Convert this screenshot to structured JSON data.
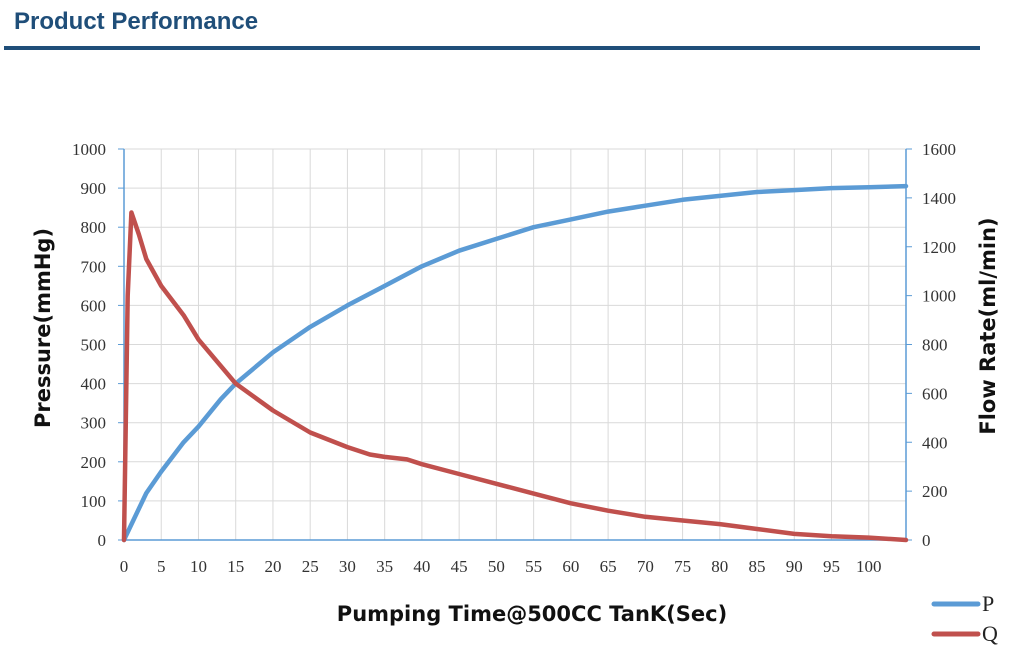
{
  "header": {
    "title": "Product Performance"
  },
  "colors": {
    "header": "#1f4e79",
    "P": "#5b9bd5",
    "Q": "#c0504d",
    "grid": "#d9d9d9",
    "axis": "#5b9bd5"
  },
  "chart_data": {
    "type": "line",
    "title": "",
    "xlabel": "Pumping  Time@500CC TanK(Sec)",
    "ylabel_left": "Pressure(mmHg)",
    "ylabel_right": "Flow Rate(ml/min)",
    "xlim": [
      0,
      105
    ],
    "ylim_left": [
      0,
      1000
    ],
    "ylim_right": [
      0,
      1600
    ],
    "grid": true,
    "legend": "bottom-right",
    "x_ticks": [
      "0",
      "5",
      "10",
      "15",
      "20",
      "25",
      "30",
      "35",
      "40",
      "45",
      "50",
      "55",
      "60",
      "65",
      "70",
      "75",
      "80",
      "85",
      "90",
      "95",
      "100"
    ],
    "y_left_ticks": [
      "0",
      "100",
      "200",
      "300",
      "400",
      "500",
      "600",
      "700",
      "800",
      "900",
      "1000"
    ],
    "y_right_ticks": [
      "0",
      "200",
      "400",
      "600",
      "800",
      "1000",
      "1200",
      "1400",
      "1600"
    ],
    "series": [
      {
        "name": "P",
        "axis": "left",
        "x": [
          0,
          1,
          3,
          5,
          8,
          10,
          13,
          15,
          20,
          25,
          30,
          35,
          40,
          45,
          50,
          55,
          60,
          65,
          70,
          75,
          80,
          85,
          90,
          95,
          100,
          105
        ],
        "y": [
          0,
          40,
          120,
          175,
          250,
          290,
          360,
          400,
          480,
          545,
          600,
          650,
          700,
          740,
          770,
          800,
          820,
          840,
          855,
          870,
          880,
          890,
          895,
          900,
          902,
          905
        ]
      },
      {
        "name": "Q",
        "axis": "right",
        "x": [
          0,
          0.5,
          1,
          2,
          3,
          5,
          8,
          10,
          15,
          20,
          25,
          30,
          33,
          35,
          38,
          40,
          45,
          50,
          55,
          60,
          65,
          70,
          75,
          80,
          85,
          90,
          95,
          100,
          105
        ],
        "y": [
          0,
          1000,
          1340,
          1250,
          1150,
          1040,
          920,
          820,
          640,
          530,
          440,
          380,
          350,
          340,
          330,
          310,
          270,
          230,
          190,
          150,
          120,
          95,
          80,
          65,
          45,
          25,
          15,
          10,
          0
        ]
      }
    ]
  }
}
